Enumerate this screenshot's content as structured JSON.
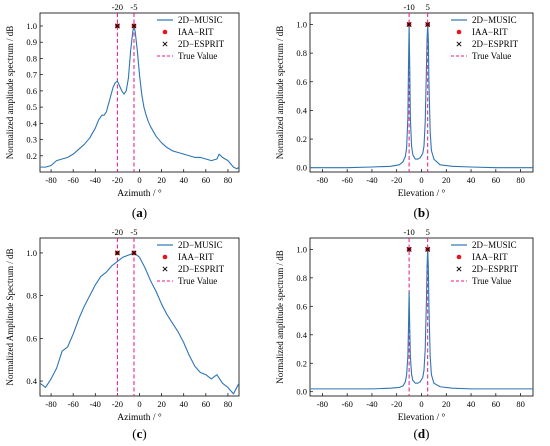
{
  "chart_data": [
    {
      "type": "line",
      "panel_label": "a",
      "xlabel": "Azimuth / °",
      "ylabel": "Normalized amplitude spectrum / dB",
      "xlim": [
        -90,
        90
      ],
      "ylim": [
        0.1,
        1.08
      ],
      "xticks": [
        -80,
        -60,
        -40,
        -20,
        0,
        20,
        40,
        60,
        80
      ],
      "yticks": [
        0.2,
        0.3,
        0.4,
        0.5,
        0.6,
        0.7,
        0.8,
        0.9,
        1.0
      ],
      "xtick_labels": [
        "-80",
        "-60",
        "-40",
        "-20",
        "0",
        "20",
        "40",
        "60",
        "80"
      ],
      "ytick_labels": [
        "0.2",
        "0.3",
        "0.4",
        "0.5",
        "0.6",
        "0.7",
        "0.8",
        "0.9",
        "1.0"
      ],
      "true_value_labels": [
        "-20",
        "-5"
      ],
      "series": [
        {
          "name": "2D−MUSIC",
          "color": "#2e75b6",
          "style": "line",
          "x": [
            -90,
            -85,
            -80,
            -75,
            -70,
            -65,
            -60,
            -55,
            -50,
            -45,
            -40,
            -37,
            -34,
            -32,
            -30,
            -28,
            -26,
            -24,
            -22,
            -20,
            -18,
            -16,
            -14,
            -12,
            -10,
            -8,
            -6,
            -5,
            -4,
            -2,
            0,
            2,
            4,
            6,
            8,
            10,
            15,
            20,
            25,
            30,
            35,
            40,
            45,
            50,
            55,
            60,
            65,
            70,
            72,
            75,
            80,
            85,
            88,
            90
          ],
          "y": [
            0.13,
            0.13,
            0.14,
            0.17,
            0.18,
            0.19,
            0.21,
            0.24,
            0.27,
            0.31,
            0.37,
            0.42,
            0.45,
            0.45,
            0.47,
            0.52,
            0.57,
            0.62,
            0.65,
            0.66,
            0.63,
            0.6,
            0.58,
            0.6,
            0.68,
            0.85,
            0.97,
            0.99,
            0.97,
            0.85,
            0.7,
            0.58,
            0.5,
            0.45,
            0.41,
            0.38,
            0.32,
            0.28,
            0.25,
            0.23,
            0.22,
            0.21,
            0.2,
            0.19,
            0.19,
            0.18,
            0.17,
            0.18,
            0.21,
            0.19,
            0.17,
            0.13,
            0.12,
            0.13
          ]
        },
        {
          "name": "IAA−RIT",
          "color": "#e8141c",
          "style": "dot",
          "x": [
            -20,
            -5
          ],
          "y": [
            1.0,
            1.0
          ]
        },
        {
          "name": "2D−ESPRIT",
          "color": "#000000",
          "style": "cross",
          "x": [
            -20,
            -5
          ],
          "y": [
            1.0,
            1.0
          ]
        },
        {
          "name": "True Value",
          "color": "#e8148c",
          "style": "vline",
          "x": [
            -20,
            -5
          ]
        }
      ],
      "legend": "top-right"
    },
    {
      "type": "line",
      "panel_label": "b",
      "xlabel": "Elevation / °",
      "ylabel": "Normalized amplitude spectrum / dB",
      "xlim": [
        -90,
        90
      ],
      "ylim": [
        -0.03,
        1.08
      ],
      "xticks": [
        -80,
        -60,
        -40,
        -20,
        0,
        20,
        40,
        60,
        80
      ],
      "yticks": [
        0.0,
        0.2,
        0.4,
        0.6,
        0.8,
        1.0
      ],
      "xtick_labels": [
        "-80",
        "-60",
        "-40",
        "-20",
        "0",
        "20",
        "40",
        "60",
        "80"
      ],
      "ytick_labels": [
        "0.0",
        "0.2",
        "0.4",
        "0.6",
        "0.8",
        "1.0"
      ],
      "true_value_labels": [
        "-10",
        "5"
      ],
      "series": [
        {
          "name": "2D−MUSIC",
          "color": "#2e75b6",
          "style": "line",
          "x": [
            -90,
            -60,
            -40,
            -25,
            -18,
            -15,
            -13,
            -12,
            -11,
            -10.5,
            -10,
            -9.5,
            -9,
            -8,
            -7,
            -5,
            -3,
            -1,
            1,
            2,
            3,
            4,
            4.5,
            5,
            5.5,
            6,
            7,
            8,
            10,
            15,
            25,
            40,
            60,
            90
          ],
          "y": [
            0.0,
            0.0,
            0.005,
            0.01,
            0.02,
            0.04,
            0.08,
            0.14,
            0.35,
            0.7,
            0.99,
            0.7,
            0.35,
            0.15,
            0.09,
            0.06,
            0.06,
            0.07,
            0.1,
            0.15,
            0.32,
            0.7,
            0.9,
            1.0,
            0.9,
            0.6,
            0.25,
            0.12,
            0.06,
            0.02,
            0.01,
            0.005,
            0.0,
            0.0
          ]
        },
        {
          "name": "IAA−RIT",
          "color": "#e8141c",
          "style": "dot",
          "x": [
            -10,
            5
          ],
          "y": [
            1.0,
            1.0
          ]
        },
        {
          "name": "2D−ESPRIT",
          "color": "#000000",
          "style": "cross",
          "x": [
            -10,
            5
          ],
          "y": [
            1.0,
            1.0
          ]
        },
        {
          "name": "True Value",
          "color": "#e8148c",
          "style": "vline",
          "x": [
            -10,
            5
          ]
        }
      ],
      "legend": "top-right"
    },
    {
      "type": "line",
      "panel_label": "c",
      "xlabel": "Azimuth / °",
      "ylabel": "Normalized Amplitude Spectrum / dB",
      "xlim": [
        -90,
        90
      ],
      "ylim": [
        0.33,
        1.07
      ],
      "xticks": [
        -80,
        -60,
        -40,
        -20,
        0,
        20,
        40,
        60,
        80
      ],
      "yticks": [
        0.4,
        0.6,
        0.8,
        1.0
      ],
      "xtick_labels": [
        "-80",
        "-60",
        "-40",
        "-20",
        "0",
        "20",
        "40",
        "60",
        "80"
      ],
      "ytick_labels": [
        "0.4",
        "0.6",
        "0.8",
        "1.0"
      ],
      "true_value_labels": [
        "-20",
        "-5"
      ],
      "series": [
        {
          "name": "2D−MUSIC",
          "color": "#2e75b6",
          "style": "line",
          "x": [
            -90,
            -85,
            -80,
            -75,
            -70,
            -65,
            -60,
            -55,
            -50,
            -45,
            -40,
            -35,
            -30,
            -25,
            -20,
            -15,
            -10,
            -5,
            0,
            5,
            10,
            15,
            20,
            25,
            30,
            35,
            40,
            45,
            50,
            55,
            60,
            65,
            70,
            75,
            80,
            85,
            90
          ],
          "y": [
            0.39,
            0.37,
            0.41,
            0.46,
            0.54,
            0.56,
            0.62,
            0.69,
            0.75,
            0.8,
            0.85,
            0.89,
            0.91,
            0.94,
            0.96,
            0.98,
            0.99,
            1.0,
            0.98,
            0.93,
            0.87,
            0.82,
            0.76,
            0.71,
            0.67,
            0.63,
            0.58,
            0.52,
            0.47,
            0.44,
            0.43,
            0.41,
            0.43,
            0.39,
            0.37,
            0.34,
            0.39
          ]
        },
        {
          "name": "IAA−RIT",
          "color": "#e8141c",
          "style": "dot",
          "x": [
            -20,
            -5
          ],
          "y": [
            1.0,
            1.0
          ]
        },
        {
          "name": "2D−ESPRIT",
          "color": "#000000",
          "style": "cross",
          "x": [
            -20,
            -5
          ],
          "y": [
            1.0,
            1.0
          ]
        },
        {
          "name": "True Value",
          "color": "#e8148c",
          "style": "vline",
          "x": [
            -20,
            -5
          ]
        }
      ],
      "legend": "top-right"
    },
    {
      "type": "line",
      "panel_label": "d",
      "xlabel": "Elevation / °",
      "ylabel": "Normalized amplitude spectrum / dB",
      "xlim": [
        -90,
        90
      ],
      "ylim": [
        -0.03,
        1.08
      ],
      "xticks": [
        -80,
        -60,
        -40,
        -20,
        0,
        20,
        40,
        60,
        80
      ],
      "yticks": [
        0.0,
        0.2,
        0.4,
        0.6,
        0.8,
        1.0
      ],
      "xtick_labels": [
        "-80",
        "-60",
        "-40",
        "-20",
        "0",
        "20",
        "40",
        "60",
        "80"
      ],
      "ytick_labels": [
        "0.0",
        "0.2",
        "0.4",
        "0.6",
        "0.8",
        "1.0"
      ],
      "true_value_labels": [
        "-10",
        "5"
      ],
      "series": [
        {
          "name": "2D−MUSIC",
          "color": "#2e75b6",
          "style": "line",
          "x": [
            -90,
            -60,
            -40,
            -25,
            -18,
            -15,
            -13,
            -12,
            -11,
            -10.5,
            -10,
            -9.5,
            -9,
            -8,
            -7,
            -5,
            -3,
            -1,
            1,
            2,
            3,
            4,
            4.5,
            5,
            5.5,
            6,
            7,
            8,
            10,
            15,
            25,
            40,
            60,
            90
          ],
          "y": [
            0.02,
            0.02,
            0.02,
            0.025,
            0.03,
            0.04,
            0.07,
            0.12,
            0.25,
            0.45,
            0.7,
            0.45,
            0.25,
            0.12,
            0.08,
            0.06,
            0.06,
            0.07,
            0.1,
            0.15,
            0.3,
            0.65,
            0.88,
            1.0,
            0.88,
            0.6,
            0.25,
            0.12,
            0.06,
            0.035,
            0.025,
            0.02,
            0.02,
            0.02
          ]
        },
        {
          "name": "IAA−RIT",
          "color": "#e8141c",
          "style": "dot",
          "x": [
            -10,
            5
          ],
          "y": [
            1.0,
            1.0
          ]
        },
        {
          "name": "2D−ESPRIT",
          "color": "#000000",
          "style": "cross",
          "x": [
            -10,
            5
          ],
          "y": [
            1.0,
            1.0
          ]
        },
        {
          "name": "True Value",
          "color": "#e8148c",
          "style": "vline",
          "x": [
            -10,
            5
          ]
        }
      ],
      "legend": "top-right"
    }
  ]
}
